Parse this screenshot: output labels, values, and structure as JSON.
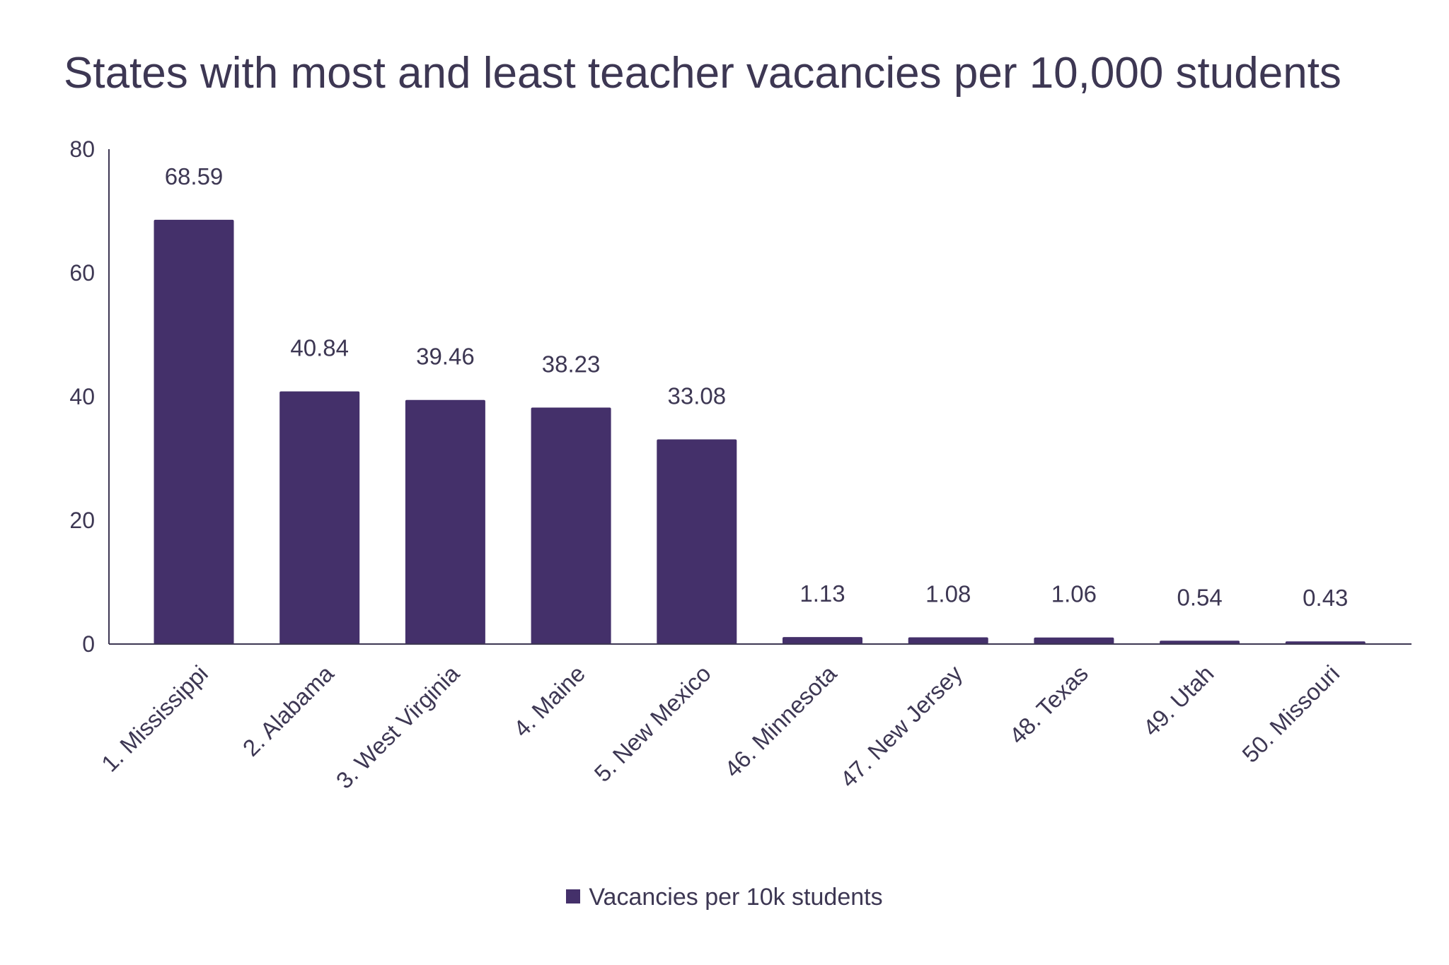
{
  "chart_data": {
    "type": "bar",
    "title": "States with most and least teacher vacancies per 10,000 students",
    "xlabel": "",
    "ylabel": "",
    "categories": [
      "1. Mississippi",
      "2. Alabama",
      "3. West Virginia",
      "4. Maine",
      "5. New Mexico",
      "46. Minnesota",
      "47. New Jersey",
      "48. Texas",
      "49. Utah",
      "50. Missouri"
    ],
    "series": [
      {
        "name": "Vacancies per 10k students",
        "values": [
          68.59,
          40.84,
          39.46,
          38.23,
          33.08,
          1.13,
          1.08,
          1.06,
          0.54,
          0.43
        ],
        "data_labels": [
          "68.59",
          "40.84",
          "39.46",
          "38.23",
          "33.08",
          "1.13",
          "1.08",
          "1.06",
          "0.54",
          "0.43"
        ]
      }
    ],
    "ylim": [
      0,
      80
    ],
    "yticks": [
      "0",
      "20",
      "40",
      "60",
      "80"
    ],
    "ytick_values": [
      0,
      20,
      40,
      60,
      80
    ],
    "grid": false,
    "legend_position": "bottom-center",
    "bar_color": "#44306a",
    "text_color": "#3d3753",
    "axis_color": "#3d3753"
  }
}
